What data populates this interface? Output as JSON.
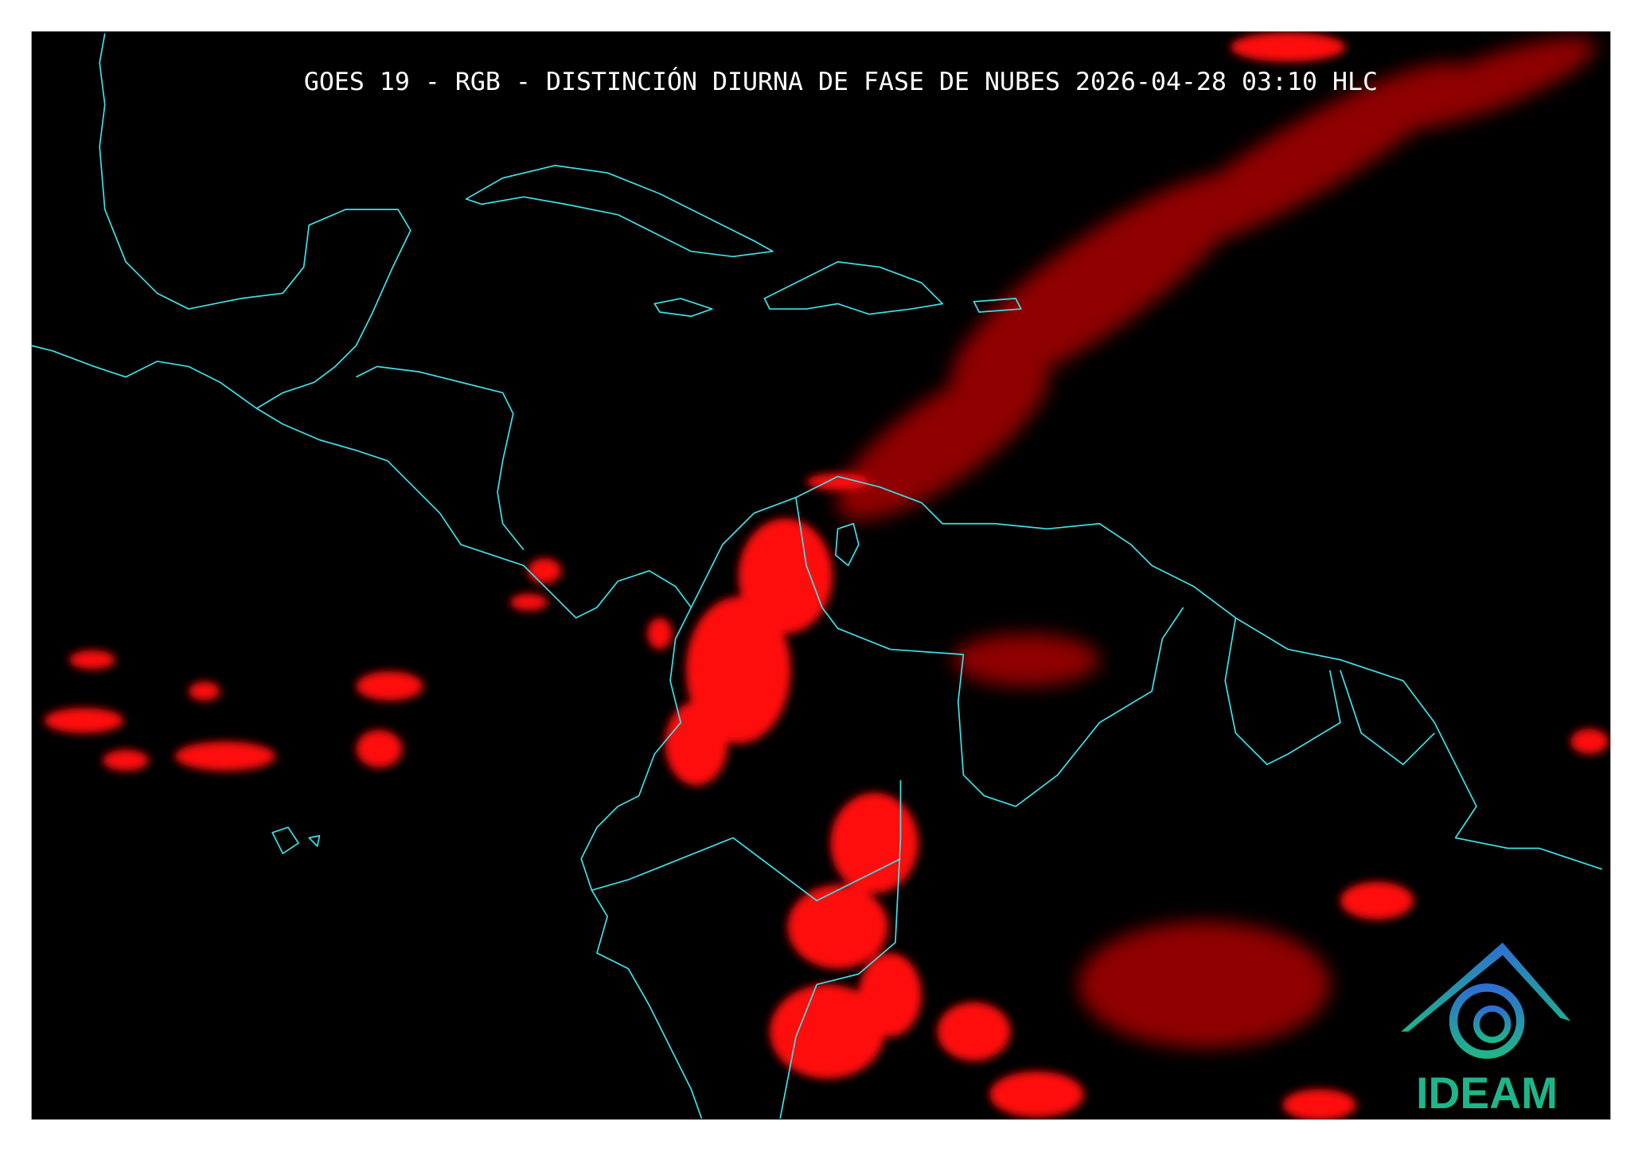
{
  "title": "GOES 19 - RGB - DISTINCIÓN DIURNA DE FASE DE NUBES 2026-04-28 03:10 HLC",
  "logo": {
    "text": "IDEAM"
  }
}
